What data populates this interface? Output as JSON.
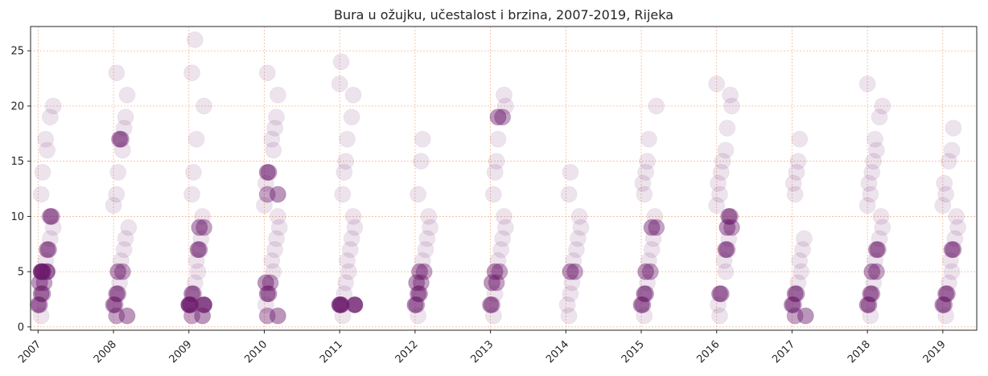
{
  "chart_data": {
    "type": "scatter",
    "title": "Bura u ožujku, učestalost i brzina, 2007-2019, Rijeka",
    "xlabel": "",
    "ylabel": "",
    "xlim": [
      2006.9,
      2019.45
    ],
    "ylim": [
      -0.3,
      27.2
    ],
    "grid": true,
    "color": "#6b1a6b",
    "x_ticks": [
      2007,
      2008,
      2009,
      2010,
      2011,
      2012,
      2013,
      2014,
      2015,
      2016,
      2017,
      2018,
      2019
    ],
    "x_tick_labels": [
      "2007",
      "2008",
      "2009",
      "2010",
      "2011",
      "2012",
      "2013",
      "2014",
      "2015",
      "2016",
      "2017",
      "2018",
      "2019"
    ],
    "y_ticks": [
      0,
      5,
      10,
      15,
      20,
      25
    ],
    "y_tick_labels": [
      "0",
      "5",
      "10",
      "15",
      "20",
      "25"
    ],
    "series": [
      {
        "x": 2007,
        "y": [
          1,
          2,
          2,
          3,
          3,
          4,
          4,
          5,
          5,
          5,
          6,
          7,
          7,
          8,
          9,
          10,
          10,
          12,
          14,
          16,
          17,
          19,
          20
        ]
      },
      {
        "x": 2008,
        "y": [
          1,
          1,
          2,
          2,
          3,
          3,
          4,
          5,
          5,
          6,
          7,
          8,
          9,
          11,
          12,
          14,
          16,
          17,
          17,
          18,
          19,
          21,
          23
        ]
      },
      {
        "x": 2009,
        "y": [
          1,
          1,
          2,
          2,
          2,
          3,
          3,
          4,
          5,
          6,
          7,
          7,
          8,
          9,
          9,
          10,
          12,
          14,
          17,
          20,
          23,
          26
        ]
      },
      {
        "x": 2010,
        "y": [
          1,
          1,
          2,
          3,
          3,
          4,
          4,
          5,
          6,
          7,
          8,
          9,
          10,
          11,
          12,
          12,
          13,
          14,
          14,
          16,
          17,
          18,
          19,
          21,
          23
        ]
      },
      {
        "x": 2011,
        "y": [
          1,
          2,
          2,
          2,
          3,
          4,
          5,
          6,
          7,
          8,
          9,
          10,
          12,
          14,
          15,
          17,
          19,
          21,
          22,
          24
        ]
      },
      {
        "x": 2012,
        "y": [
          1,
          2,
          2,
          3,
          3,
          4,
          4,
          5,
          5,
          6,
          7,
          8,
          9,
          10,
          12,
          15,
          17
        ]
      },
      {
        "x": 2013,
        "y": [
          1,
          2,
          2,
          3,
          4,
          4,
          5,
          5,
          6,
          7,
          8,
          9,
          10,
          12,
          14,
          15,
          17,
          19,
          19,
          20,
          21
        ]
      },
      {
        "x": 2014,
        "y": [
          1,
          2,
          3,
          4,
          5,
          5,
          6,
          7,
          8,
          9,
          10,
          12,
          14
        ]
      },
      {
        "x": 2015,
        "y": [
          1,
          2,
          2,
          3,
          3,
          4,
          5,
          5,
          6,
          7,
          8,
          9,
          9,
          10,
          12,
          13,
          14,
          15,
          17,
          20
        ]
      },
      {
        "x": 2016,
        "y": [
          1,
          2,
          3,
          3,
          5,
          6,
          7,
          7,
          8,
          9,
          9,
          10,
          10,
          11,
          12,
          13,
          14,
          15,
          16,
          18,
          20,
          21,
          22
        ]
      },
      {
        "x": 2017,
        "y": [
          1,
          1,
          2,
          2,
          3,
          3,
          4,
          5,
          6,
          7,
          8,
          12,
          13,
          14,
          15,
          17
        ]
      },
      {
        "x": 2018,
        "y": [
          1,
          2,
          2,
          3,
          3,
          4,
          5,
          5,
          6,
          7,
          7,
          8,
          9,
          10,
          11,
          12,
          13,
          14,
          15,
          16,
          17,
          19,
          20,
          22
        ]
      },
      {
        "x": 2019,
        "y": [
          1,
          2,
          2,
          3,
          3,
          4,
          5,
          6,
          7,
          7,
          8,
          9,
          10,
          11,
          12,
          13,
          15,
          16,
          18
        ]
      }
    ]
  }
}
